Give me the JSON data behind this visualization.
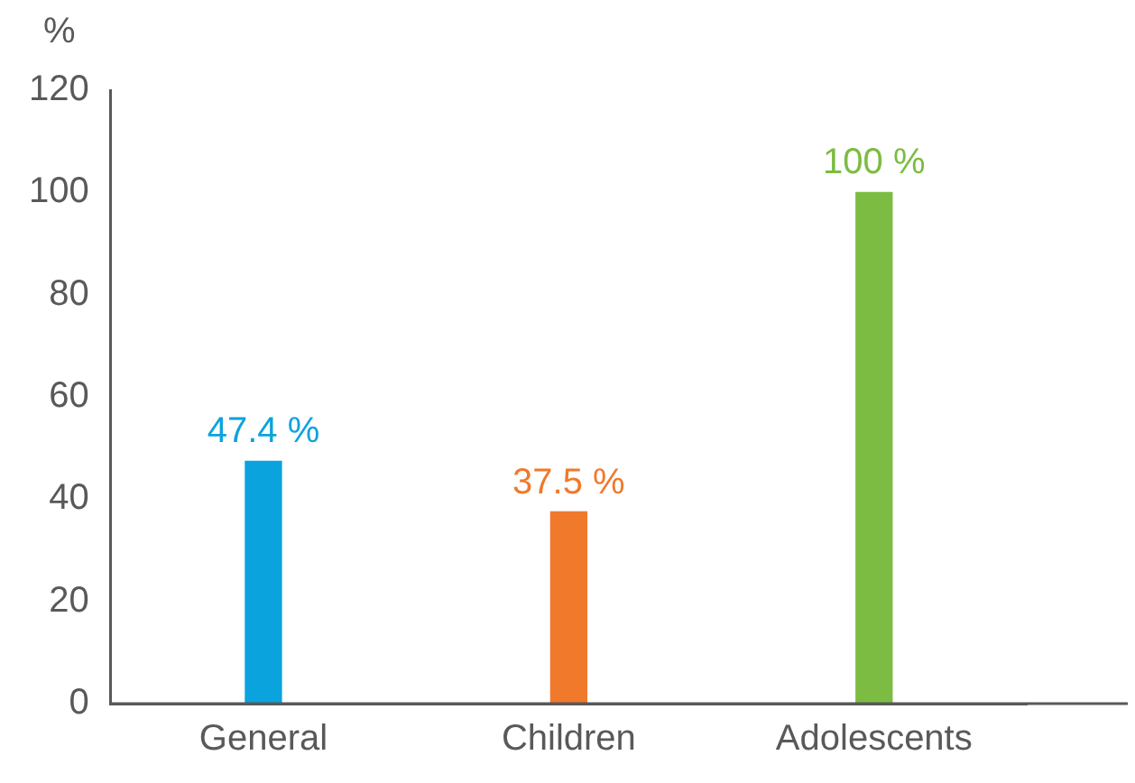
{
  "chart_data": {
    "type": "bar",
    "ylabel": "%",
    "categories": [
      "General",
      "Children",
      "Adolescents"
    ],
    "values": [
      47.4,
      37.5,
      100
    ],
    "colors": [
      "#0aa3de",
      "#f0792c",
      "#7cbc42"
    ],
    "value_labels": [
      "47.4 %",
      "37.5 %",
      "100 %"
    ],
    "ylim": [
      0,
      120
    ],
    "yticks": [
      0,
      20,
      40,
      60,
      80,
      100,
      120
    ],
    "grid": false,
    "legend": false
  }
}
